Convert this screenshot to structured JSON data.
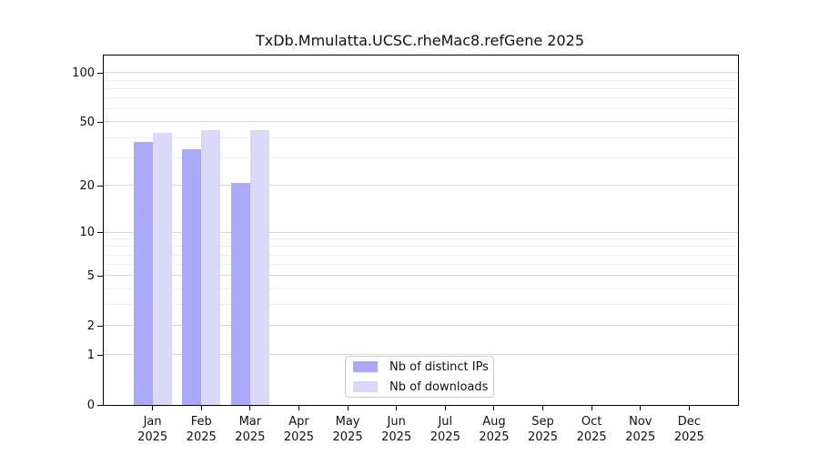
{
  "title": "TxDb.Mmulatta.UCSC.rheMac8.refGene 2025",
  "legend": {
    "items": [
      {
        "label": "Nb of distinct IPs"
      },
      {
        "label": "Nb of downloads"
      }
    ]
  },
  "colors": {
    "distinct_ips": "#a9a9f7",
    "downloads": "#d9d9f7",
    "grid_major": "#d8d8d8",
    "grid_minor": "#efefef",
    "spine": "#000000",
    "background": "#ffffff"
  },
  "chart_data": {
    "type": "bar",
    "title": "TxDb.Mmulatta.UCSC.rheMac8.refGene 2025",
    "categories": [
      "Jan",
      "Feb",
      "Mar",
      "Apr",
      "May",
      "Jun",
      "Jul",
      "Aug",
      "Sep",
      "Oct",
      "Nov",
      "Dec"
    ],
    "year": "2025",
    "series": [
      {
        "name": "Nb of distinct IPs",
        "color": "#a9a9f7",
        "values": [
          38,
          34,
          21,
          0,
          0,
          0,
          0,
          0,
          0,
          0,
          0,
          0
        ]
      },
      {
        "name": "Nb of downloads",
        "color": "#d9d9f7",
        "values": [
          43,
          45,
          45,
          0,
          0,
          0,
          0,
          0,
          0,
          0,
          0,
          0
        ]
      }
    ],
    "xlabel": "",
    "ylabel": "",
    "yscale": "log1p",
    "ylim": [
      0,
      128
    ],
    "yticks": [
      0,
      1,
      2,
      5,
      10,
      20,
      50,
      100
    ],
    "yticks_minor": [
      3,
      4,
      6,
      7,
      8,
      9,
      30,
      40,
      60,
      70,
      80,
      90
    ],
    "grid": "horizontal",
    "legend_position": "lower center"
  }
}
